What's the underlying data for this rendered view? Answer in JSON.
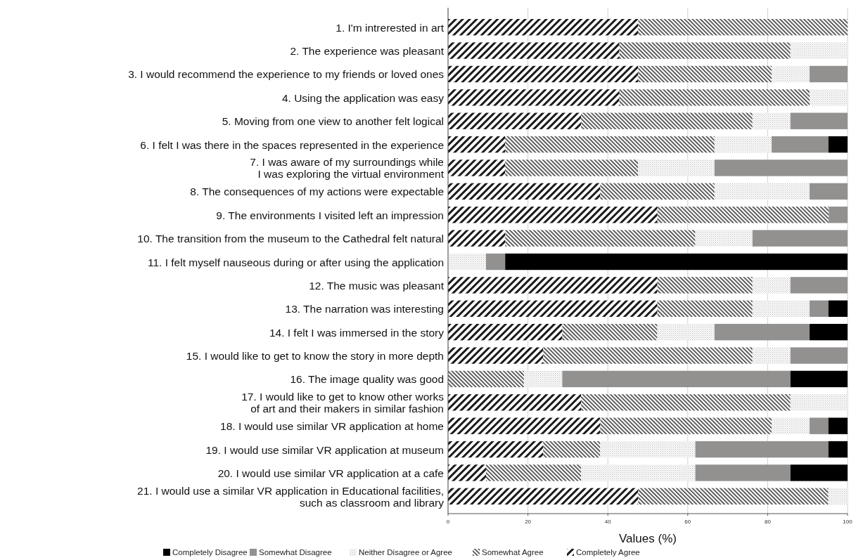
{
  "chart_data": {
    "type": "bar",
    "orientation": "horizontal",
    "stacked": true,
    "xlabel": "Values (%)",
    "categories": [
      "1. I'm intrerested in art",
      "2. The experience was pleasant",
      "3. I would recommend the experience to my friends or loved ones",
      "4. Using the application was easy",
      "5. Moving from one view to another felt logical",
      "6. I felt I was there in the spaces represented in the experience",
      "7. I was aware of my surroundings while\nI was exploring the virtual environment",
      "8. The consequences of my actions were expectable",
      "9. The environments I visited left an impression",
      "10. The transition from the museum to the Cathedral felt natural",
      "11. I felt myself nauseous during or after using the application",
      "12. The music was pleasant",
      "13. The narration was interesting",
      "14. I felt I was immersed in the story",
      "15. I would like to get to know the story in more depth",
      "16. The image quality was good",
      "17. I would like to get to know other works\nof art and their makers in similar fashion",
      "18. I would use similar VR application at home",
      "19. I would use similar VR application at museum",
      "20. I would use similar VR application at a cafe",
      "21. I would use a similar VR application in Educational facilities,\nsuch as classroom and library"
    ],
    "series": [
      {
        "name": "Completely Agree",
        "color": "#1a1a1a",
        "values": [
          47.6,
          42.9,
          47.6,
          42.9,
          33.3,
          14.3,
          14.3,
          38.1,
          52.4,
          14.3,
          0,
          52.4,
          52.4,
          28.6,
          23.8,
          0,
          33.3,
          38.1,
          23.8,
          9.5,
          47.6
        ]
      },
      {
        "name": "Somewhat Agree",
        "color": "#3a3a3a",
        "values": [
          52.4,
          42.8,
          33.4,
          47.6,
          42.9,
          52.4,
          33.3,
          28.6,
          42.9,
          47.6,
          0,
          23.8,
          23.8,
          23.8,
          52.4,
          19.0,
          52.4,
          42.9,
          14.3,
          23.8,
          47.6
        ]
      },
      {
        "name": "Neither Disagree or Agree",
        "color": "#b5b5b5",
        "values": [
          0,
          14.3,
          9.5,
          9.5,
          9.5,
          14.3,
          19.1,
          23.8,
          0,
          14.3,
          9.5,
          9.5,
          14.3,
          14.3,
          9.5,
          9.6,
          14.3,
          9.5,
          23.8,
          28.6,
          4.8
        ]
      },
      {
        "name": "Somewhat Disagree",
        "color": "#939090",
        "values": [
          0,
          0,
          9.5,
          0,
          14.3,
          14.2,
          33.3,
          9.5,
          4.7,
          23.8,
          4.8,
          14.3,
          4.7,
          23.8,
          14.3,
          57.1,
          0,
          4.7,
          33.3,
          23.8,
          0
        ]
      },
      {
        "name": "Completely Disagree",
        "color": "#000000",
        "values": [
          0,
          0,
          0,
          0,
          0,
          4.8,
          0,
          0,
          0,
          0,
          85.7,
          0,
          4.8,
          9.5,
          0,
          14.3,
          0,
          4.8,
          4.8,
          14.3,
          0
        ]
      }
    ],
    "xlim": [
      0,
      100
    ],
    "xticks": [
      0,
      20,
      40,
      60,
      80,
      100
    ],
    "grid": "x",
    "legend": "bottom"
  }
}
